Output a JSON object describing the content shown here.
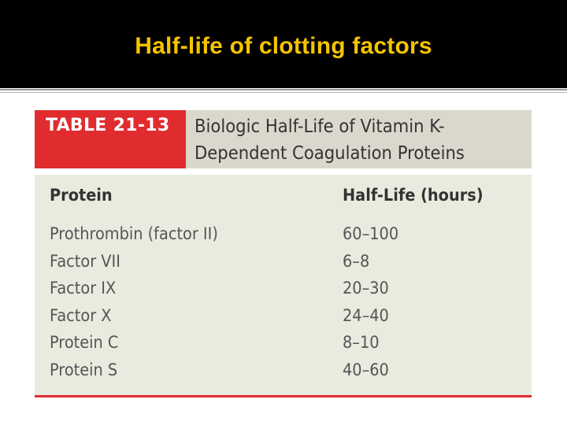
{
  "slide": {
    "title": "Half-life of clotting factors"
  },
  "table": {
    "number": "TABLE 21-13",
    "caption": "Biologic Half-Life of Vitamin K-Dependent Coagulation Proteins",
    "headers": [
      "Protein",
      "Half-Life (hours)"
    ],
    "rows": [
      [
        "Prothrombin (factor II)",
        "60–100"
      ],
      [
        "Factor VII",
        "6–8"
      ],
      [
        "Factor IX",
        "20–30"
      ],
      [
        "Factor X",
        "24–40"
      ],
      [
        "Protein C",
        "8–10"
      ],
      [
        "Protein S",
        "40–60"
      ]
    ]
  },
  "colors": {
    "title_text": "#f5c400",
    "title_bar": "#000000",
    "accent_red": "#e02c2f",
    "table_bg": "#e9ebdf"
  }
}
